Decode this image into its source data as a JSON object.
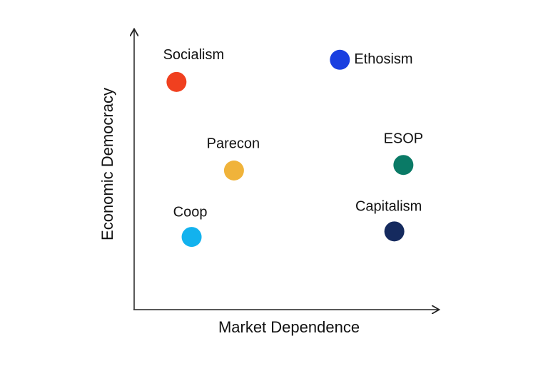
{
  "chart_data": {
    "type": "scatter",
    "x_label": "Market Dependence",
    "y_label": "Economic Democracy",
    "labels": [
      "Socialism",
      "Ethosism",
      "Parecon",
      "ESOP",
      "Coop",
      "Capitalism"
    ],
    "x": [
      14,
      68,
      33,
      89,
      19,
      86
    ],
    "y": [
      82,
      90,
      50,
      52,
      26,
      28
    ],
    "colors": [
      "#f0401f",
      "#1a3fe0",
      "#f0b33a",
      "#0a7a66",
      "#12b2ee",
      "#152a5e"
    ],
    "xlim": [
      0,
      100
    ],
    "ylim": [
      0,
      100
    ]
  }
}
